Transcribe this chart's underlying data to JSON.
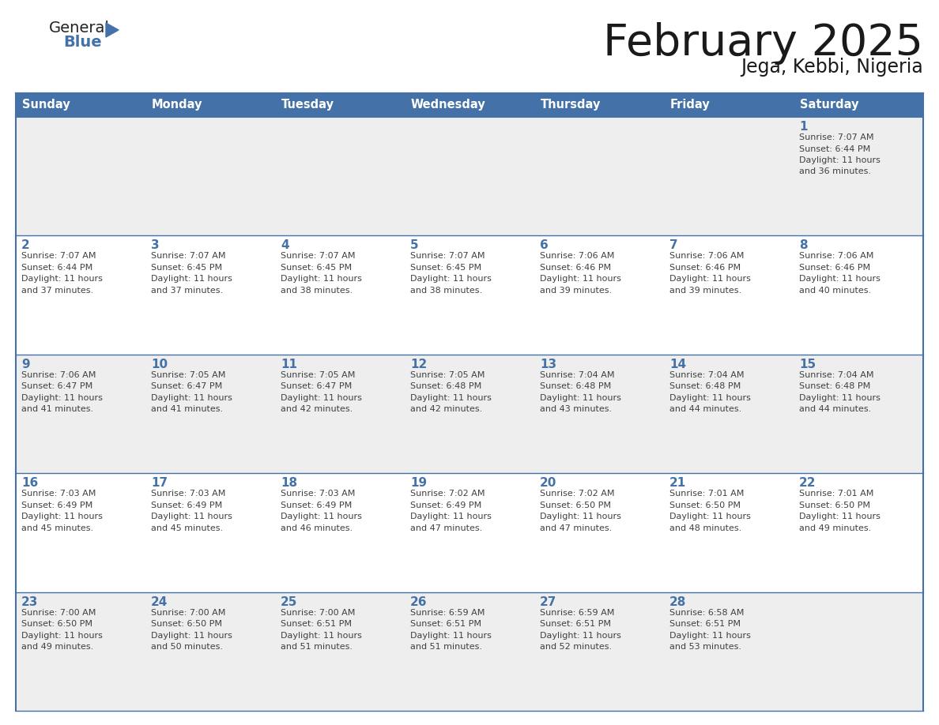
{
  "title": "February 2025",
  "subtitle": "Jega, Kebbi, Nigeria",
  "header_bg": "#4472A8",
  "header_text_color": "#FFFFFF",
  "days_of_week": [
    "Sunday",
    "Monday",
    "Tuesday",
    "Wednesday",
    "Thursday",
    "Friday",
    "Saturday"
  ],
  "row_bg_odd": "#EEEEEE",
  "row_bg_even": "#FFFFFF",
  "cell_border_color": "#4472A8",
  "day_num_color": "#4472A8",
  "text_color": "#404040",
  "title_color": "#1a1a1a",
  "calendar": [
    [
      null,
      null,
      null,
      null,
      null,
      null,
      {
        "day": 1,
        "sunrise": "7:07 AM",
        "sunset": "6:44 PM",
        "daylight": "11 hours and 36 minutes."
      }
    ],
    [
      {
        "day": 2,
        "sunrise": "7:07 AM",
        "sunset": "6:44 PM",
        "daylight": "11 hours and 37 minutes."
      },
      {
        "day": 3,
        "sunrise": "7:07 AM",
        "sunset": "6:45 PM",
        "daylight": "11 hours and 37 minutes."
      },
      {
        "day": 4,
        "sunrise": "7:07 AM",
        "sunset": "6:45 PM",
        "daylight": "11 hours and 38 minutes."
      },
      {
        "day": 5,
        "sunrise": "7:07 AM",
        "sunset": "6:45 PM",
        "daylight": "11 hours and 38 minutes."
      },
      {
        "day": 6,
        "sunrise": "7:06 AM",
        "sunset": "6:46 PM",
        "daylight": "11 hours and 39 minutes."
      },
      {
        "day": 7,
        "sunrise": "7:06 AM",
        "sunset": "6:46 PM",
        "daylight": "11 hours and 39 minutes."
      },
      {
        "day": 8,
        "sunrise": "7:06 AM",
        "sunset": "6:46 PM",
        "daylight": "11 hours and 40 minutes."
      }
    ],
    [
      {
        "day": 9,
        "sunrise": "7:06 AM",
        "sunset": "6:47 PM",
        "daylight": "11 hours and 41 minutes."
      },
      {
        "day": 10,
        "sunrise": "7:05 AM",
        "sunset": "6:47 PM",
        "daylight": "11 hours and 41 minutes."
      },
      {
        "day": 11,
        "sunrise": "7:05 AM",
        "sunset": "6:47 PM",
        "daylight": "11 hours and 42 minutes."
      },
      {
        "day": 12,
        "sunrise": "7:05 AM",
        "sunset": "6:48 PM",
        "daylight": "11 hours and 42 minutes."
      },
      {
        "day": 13,
        "sunrise": "7:04 AM",
        "sunset": "6:48 PM",
        "daylight": "11 hours and 43 minutes."
      },
      {
        "day": 14,
        "sunrise": "7:04 AM",
        "sunset": "6:48 PM",
        "daylight": "11 hours and 44 minutes."
      },
      {
        "day": 15,
        "sunrise": "7:04 AM",
        "sunset": "6:48 PM",
        "daylight": "11 hours and 44 minutes."
      }
    ],
    [
      {
        "day": 16,
        "sunrise": "7:03 AM",
        "sunset": "6:49 PM",
        "daylight": "11 hours and 45 minutes."
      },
      {
        "day": 17,
        "sunrise": "7:03 AM",
        "sunset": "6:49 PM",
        "daylight": "11 hours and 45 minutes."
      },
      {
        "day": 18,
        "sunrise": "7:03 AM",
        "sunset": "6:49 PM",
        "daylight": "11 hours and 46 minutes."
      },
      {
        "day": 19,
        "sunrise": "7:02 AM",
        "sunset": "6:49 PM",
        "daylight": "11 hours and 47 minutes."
      },
      {
        "day": 20,
        "sunrise": "7:02 AM",
        "sunset": "6:50 PM",
        "daylight": "11 hours and 47 minutes."
      },
      {
        "day": 21,
        "sunrise": "7:01 AM",
        "sunset": "6:50 PM",
        "daylight": "11 hours and 48 minutes."
      },
      {
        "day": 22,
        "sunrise": "7:01 AM",
        "sunset": "6:50 PM",
        "daylight": "11 hours and 49 minutes."
      }
    ],
    [
      {
        "day": 23,
        "sunrise": "7:00 AM",
        "sunset": "6:50 PM",
        "daylight": "11 hours and 49 minutes."
      },
      {
        "day": 24,
        "sunrise": "7:00 AM",
        "sunset": "6:50 PM",
        "daylight": "11 hours and 50 minutes."
      },
      {
        "day": 25,
        "sunrise": "7:00 AM",
        "sunset": "6:51 PM",
        "daylight": "11 hours and 51 minutes."
      },
      {
        "day": 26,
        "sunrise": "6:59 AM",
        "sunset": "6:51 PM",
        "daylight": "11 hours and 51 minutes."
      },
      {
        "day": 27,
        "sunrise": "6:59 AM",
        "sunset": "6:51 PM",
        "daylight": "11 hours and 52 minutes."
      },
      {
        "day": 28,
        "sunrise": "6:58 AM",
        "sunset": "6:51 PM",
        "daylight": "11 hours and 53 minutes."
      },
      null
    ]
  ]
}
